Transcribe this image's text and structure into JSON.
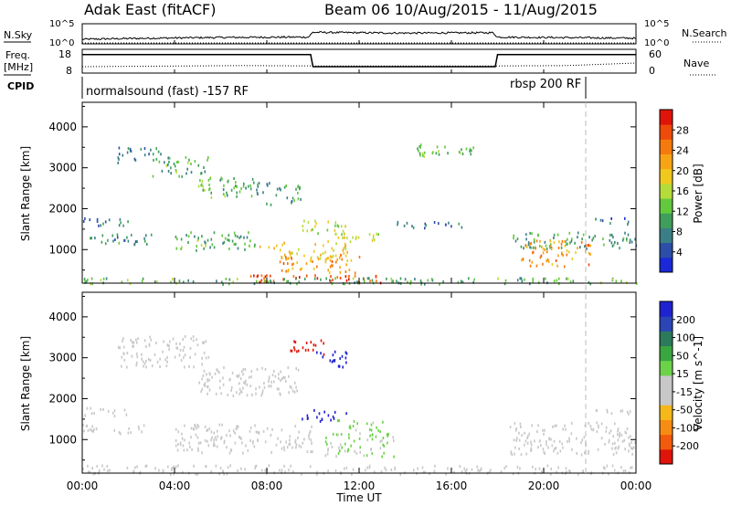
{
  "header": {
    "station": "Adak East (fitACF)",
    "beam_info": "Beam 06  10/Aug/2015 - 11/Aug/2015"
  },
  "nsky_panel": {
    "left_label": "N.Sky",
    "right_label": "N.Search",
    "left_ticks": [
      "10^5",
      "10^0"
    ],
    "right_ticks": [
      "10^5",
      "10^0"
    ]
  },
  "freq_panel": {
    "left_label_1": "Freq.",
    "left_label_2": "[MHz]",
    "right_label": "Nave",
    "left_ticks": [
      "18",
      "8"
    ],
    "right_ticks": [
      "60",
      "0"
    ]
  },
  "cpid_panel": {
    "label": "CPID",
    "mode_1": "normalsound (fast) -157 RF",
    "mode_2": "rbsp 200 RF"
  },
  "x_axis": {
    "title": "Time UT",
    "tick_labels": [
      "00:00",
      "04:00",
      "08:00",
      "12:00",
      "16:00",
      "20:00",
      "00:00"
    ]
  },
  "colors": {
    "power": [
      "#1a28d8",
      "#2c4ea8",
      "#3b7f86",
      "#3f9e5c",
      "#63c83d",
      "#b5dc3a",
      "#f0c81e",
      "#f7a414",
      "#f57a0e",
      "#ee4a0a",
      "#e0140a"
    ],
    "velocity": [
      "#e0140a",
      "#f25a0c",
      "#f78c12",
      "#f5b81a",
      "#c8c8c8",
      "#c8c8c8",
      "#6cd24a",
      "#3aa640",
      "#2c7a5c",
      "#2b45b6",
      "#1e22cf"
    ],
    "dashed_marker": "#bbbbbb"
  },
  "chart_data": [
    {
      "type": "line",
      "title": "N.Sky",
      "x_unit": "UT hours",
      "series": [
        {
          "name": "N.Sky",
          "x": [
            0,
            3,
            6,
            9.8,
            10,
            14,
            17.8,
            18,
            22,
            24
          ],
          "y": [
            0.9,
            1.2,
            1.4,
            1.5,
            2.8,
            2.6,
            2.7,
            1.5,
            1.3,
            1.2
          ]
        },
        {
          "name": "N.Search",
          "x": [
            0,
            24
          ],
          "y": [
            0,
            0
          ]
        }
      ],
      "ylim": [
        0,
        5
      ]
    },
    {
      "type": "line",
      "title": "Freq. [MHz]",
      "x_unit": "UT hours",
      "series": [
        {
          "name": "Freq.",
          "x": [
            0,
            9.9,
            10,
            17.9,
            18,
            24
          ],
          "y": [
            16,
            16,
            10.5,
            10.5,
            16,
            16
          ]
        },
        {
          "name": "Nave",
          "x": [
            0,
            7,
            10,
            18,
            21,
            24
          ],
          "y": [
            15,
            18,
            17,
            17,
            18,
            25
          ]
        }
      ],
      "ylim": [
        8,
        18
      ],
      "y2lim": [
        0,
        60
      ]
    },
    {
      "type": "heatmap",
      "title": "Power",
      "ylabel": "Slant Range [km]",
      "xlabel": "Time UT",
      "colorbar_label": "Power [dB]",
      "colorbar_ticks": [
        4,
        8,
        12,
        16,
        20,
        24,
        28
      ],
      "y_ticks": [
        1000,
        2000,
        3000,
        4000
      ],
      "ylim": [
        180,
        4600
      ],
      "xlim": [
        0,
        24
      ],
      "regions": [
        {
          "t0": 0.0,
          "t1": 2.0,
          "r0": 1600,
          "r1": 1800,
          "level": 6
        },
        {
          "t0": 0.0,
          "t1": 3.0,
          "r0": 1150,
          "r1": 1400,
          "level": 7
        },
        {
          "t0": 1.5,
          "t1": 3.5,
          "r0": 3150,
          "r1": 3550,
          "level": 6
        },
        {
          "t0": 3.0,
          "t1": 5.5,
          "r0": 2800,
          "r1": 3300,
          "level": 10
        },
        {
          "t0": 5.0,
          "t1": 7.5,
          "r0": 2300,
          "r1": 2800,
          "level": 11
        },
        {
          "t0": 7.5,
          "t1": 9.5,
          "r0": 2100,
          "r1": 2700,
          "level": 8
        },
        {
          "t0": 4.0,
          "t1": 7.5,
          "r0": 1000,
          "r1": 1450,
          "level": 10
        },
        {
          "t0": 7.5,
          "t1": 11.5,
          "r0": 800,
          "r1": 1200,
          "level": 18
        },
        {
          "t0": 9.5,
          "t1": 11.5,
          "r0": 1400,
          "r1": 1750,
          "level": 15
        },
        {
          "t0": 10.5,
          "t1": 13.0,
          "r0": 1200,
          "r1": 1450,
          "level": 16
        },
        {
          "t0": 8.5,
          "t1": 12.0,
          "r0": 450,
          "r1": 900,
          "level": 22
        },
        {
          "t0": 7.0,
          "t1": 13.0,
          "r0": 200,
          "r1": 400,
          "level": 27
        },
        {
          "t0": 0.0,
          "t1": 24.0,
          "r0": 180,
          "r1": 330,
          "level": 10
        },
        {
          "t0": 13.0,
          "t1": 16.5,
          "r0": 1550,
          "r1": 1700,
          "level": 6
        },
        {
          "t0": 14.5,
          "t1": 17.0,
          "r0": 3300,
          "r1": 3600,
          "level": 12
        },
        {
          "t0": 18.5,
          "t1": 24.0,
          "r0": 1050,
          "r1": 1450,
          "level": 9
        },
        {
          "t0": 19.0,
          "t1": 22.0,
          "r0": 600,
          "r1": 1250,
          "level": 22
        },
        {
          "t0": 22.0,
          "t1": 24.0,
          "r0": 1650,
          "r1": 1800,
          "level": 5
        }
      ]
    },
    {
      "type": "heatmap",
      "title": "Velocity",
      "ylabel": "Slant Range [km]",
      "xlabel": "Time UT",
      "colorbar_label": "Velocity [m s^-1]",
      "colorbar_ticks": [
        -200,
        -100,
        -50,
        -15,
        15,
        50,
        100,
        200
      ],
      "y_ticks": [
        1000,
        2000,
        3000,
        4000
      ],
      "ylim": [
        180,
        4600
      ],
      "xlim": [
        0,
        24
      ],
      "regions": [
        {
          "t0": 0.0,
          "t1": 2.0,
          "r0": 1600,
          "r1": 1800,
          "v": 0
        },
        {
          "t0": 0.0,
          "t1": 3.0,
          "r0": 1150,
          "r1": 1400,
          "v": 0
        },
        {
          "t0": 1.5,
          "t1": 5.5,
          "r0": 2800,
          "r1": 3550,
          "v": 0
        },
        {
          "t0": 5.0,
          "t1": 9.5,
          "r0": 2100,
          "r1": 2800,
          "v": 0
        },
        {
          "t0": 9.0,
          "t1": 10.5,
          "r0": 3100,
          "r1": 3500,
          "v": -220
        },
        {
          "t0": 10.0,
          "t1": 11.5,
          "r0": 2800,
          "r1": 3200,
          "v": 220
        },
        {
          "t0": 9.5,
          "t1": 11.5,
          "r0": 1450,
          "r1": 1750,
          "v": 220
        },
        {
          "t0": 11.0,
          "t1": 13.0,
          "r0": 1150,
          "r1": 1500,
          "v": 40
        },
        {
          "t0": 10.5,
          "t1": 13.5,
          "r0": 600,
          "r1": 1200,
          "v": 30
        },
        {
          "t0": 4.0,
          "t1": 10.0,
          "r0": 700,
          "r1": 1400,
          "v": 0
        },
        {
          "t0": 0.0,
          "t1": 24.0,
          "r0": 180,
          "r1": 400,
          "v": -40
        },
        {
          "t0": 18.5,
          "t1": 24.0,
          "r0": 650,
          "r1": 1450,
          "v": 0
        },
        {
          "t0": 22.0,
          "t1": 24.0,
          "r0": 1650,
          "r1": 1800,
          "v": 0
        }
      ]
    }
  ]
}
